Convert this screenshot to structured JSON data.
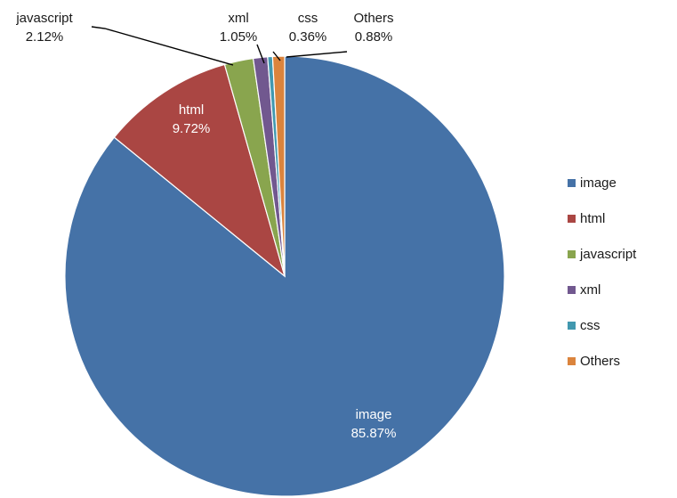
{
  "chart_data": {
    "type": "pie",
    "title": "",
    "slices": [
      {
        "label": "image",
        "value": 85.87,
        "value_label": "85.87%",
        "color": "#4572A7"
      },
      {
        "label": "html",
        "value": 9.72,
        "value_label": "9.72%",
        "color": "#AA4643"
      },
      {
        "label": "javascript",
        "value": 2.12,
        "value_label": "2.12%",
        "color": "#89A54E"
      },
      {
        "label": "xml",
        "value": 1.05,
        "value_label": "1.05%",
        "color": "#71588F"
      },
      {
        "label": "css",
        "value": 0.36,
        "value_label": "0.36%",
        "color": "#4198AF"
      },
      {
        "label": "Others",
        "value": 0.88,
        "value_label": "0.88%",
        "color": "#DB843D"
      }
    ],
    "legend_placement": "right",
    "legend": [
      "image",
      "html",
      "javascript",
      "xml",
      "css",
      "Others"
    ]
  }
}
